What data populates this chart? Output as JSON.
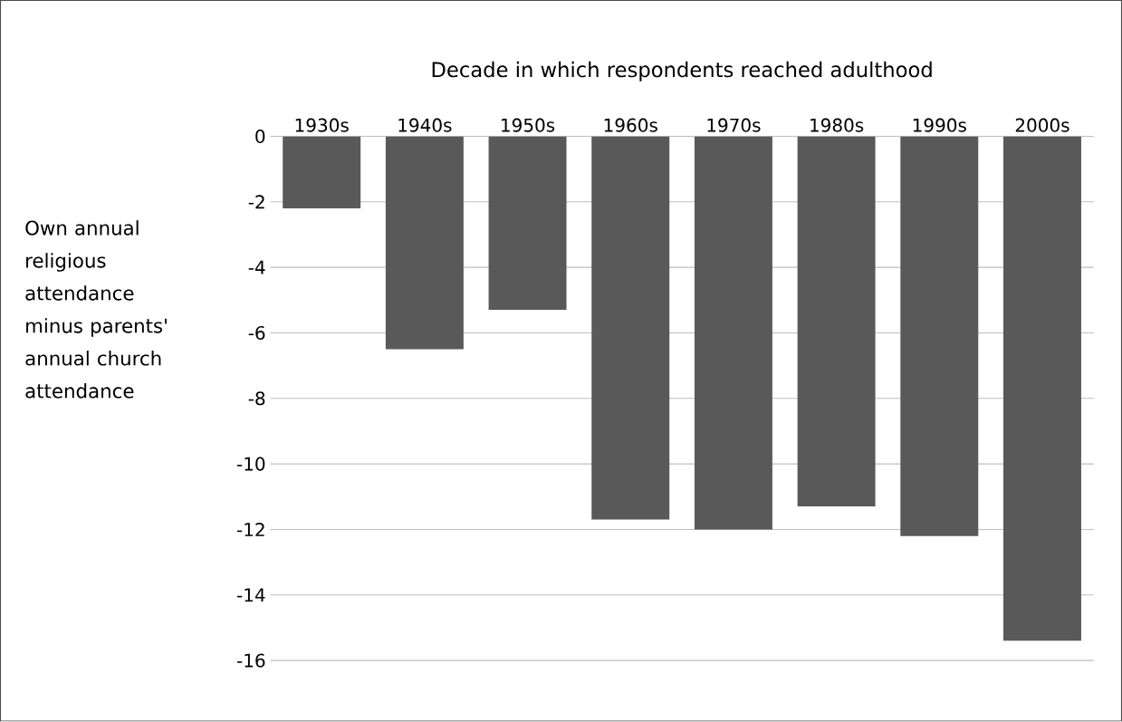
{
  "chart_data": {
    "type": "bar",
    "xlabel": "Decade in which respondents reached adulthood",
    "ylabel": "Own annual religious attendance minus parents' annual church attendance",
    "categories": [
      "1930s",
      "1940s",
      "1950s",
      "1960s",
      "1970s",
      "1980s",
      "1990s",
      "2000s"
    ],
    "values": [
      -2.2,
      -6.5,
      -5.3,
      -11.7,
      -12.0,
      -11.3,
      -12.2,
      -15.4
    ],
    "color": "#595959",
    "ylim": [
      -16,
      0
    ],
    "yticks": [
      0,
      -2,
      -4,
      -6,
      -8,
      -10,
      -12,
      -14,
      -16
    ],
    "grid": "y"
  }
}
